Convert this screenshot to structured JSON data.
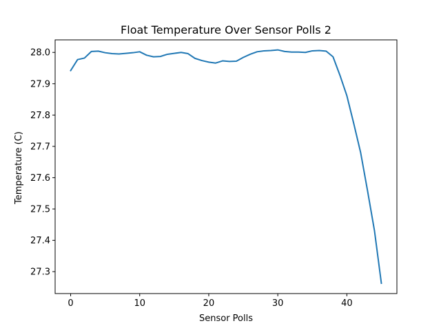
{
  "chart_data": {
    "type": "line",
    "title": "Float Temperature Over Sensor Polls 2",
    "xlabel": "Sensor Polls",
    "ylabel": "Temperature (C)",
    "xlim": [
      -2.25,
      47.25
    ],
    "ylim": [
      27.23,
      28.04
    ],
    "xticks": [
      0,
      10,
      20,
      30,
      40
    ],
    "yticks": [
      27.3,
      27.4,
      27.5,
      27.6,
      27.7,
      27.8,
      27.9,
      28.0
    ],
    "ytick_labels": [
      "27.3",
      "27.4",
      "27.5",
      "27.6",
      "27.7",
      "27.8",
      "27.9",
      "28.0"
    ],
    "grid": false,
    "series": [
      {
        "color": "#1f77b4",
        "x": [
          0,
          1,
          2,
          3,
          4,
          5,
          6,
          7,
          8,
          9,
          10,
          11,
          12,
          13,
          14,
          15,
          16,
          17,
          18,
          19,
          20,
          21,
          22,
          23,
          24,
          25,
          26,
          27,
          28,
          29,
          30,
          31,
          32,
          33,
          34,
          35,
          36,
          37,
          38,
          39,
          40,
          41,
          42,
          43,
          44,
          45
        ],
        "y": [
          27.942,
          27.977,
          27.982,
          28.003,
          28.004,
          27.999,
          27.996,
          27.995,
          27.997,
          27.999,
          28.002,
          27.991,
          27.986,
          27.987,
          27.994,
          27.997,
          28.0,
          27.996,
          27.981,
          27.974,
          27.969,
          27.966,
          27.973,
          27.971,
          27.972,
          27.984,
          27.994,
          28.002,
          28.005,
          28.006,
          28.008,
          28.003,
          28.001,
          28.001,
          28.0,
          28.005,
          28.006,
          28.004,
          27.986,
          27.927,
          27.862,
          27.773,
          27.68,
          27.558,
          27.431,
          27.263
        ]
      }
    ]
  }
}
